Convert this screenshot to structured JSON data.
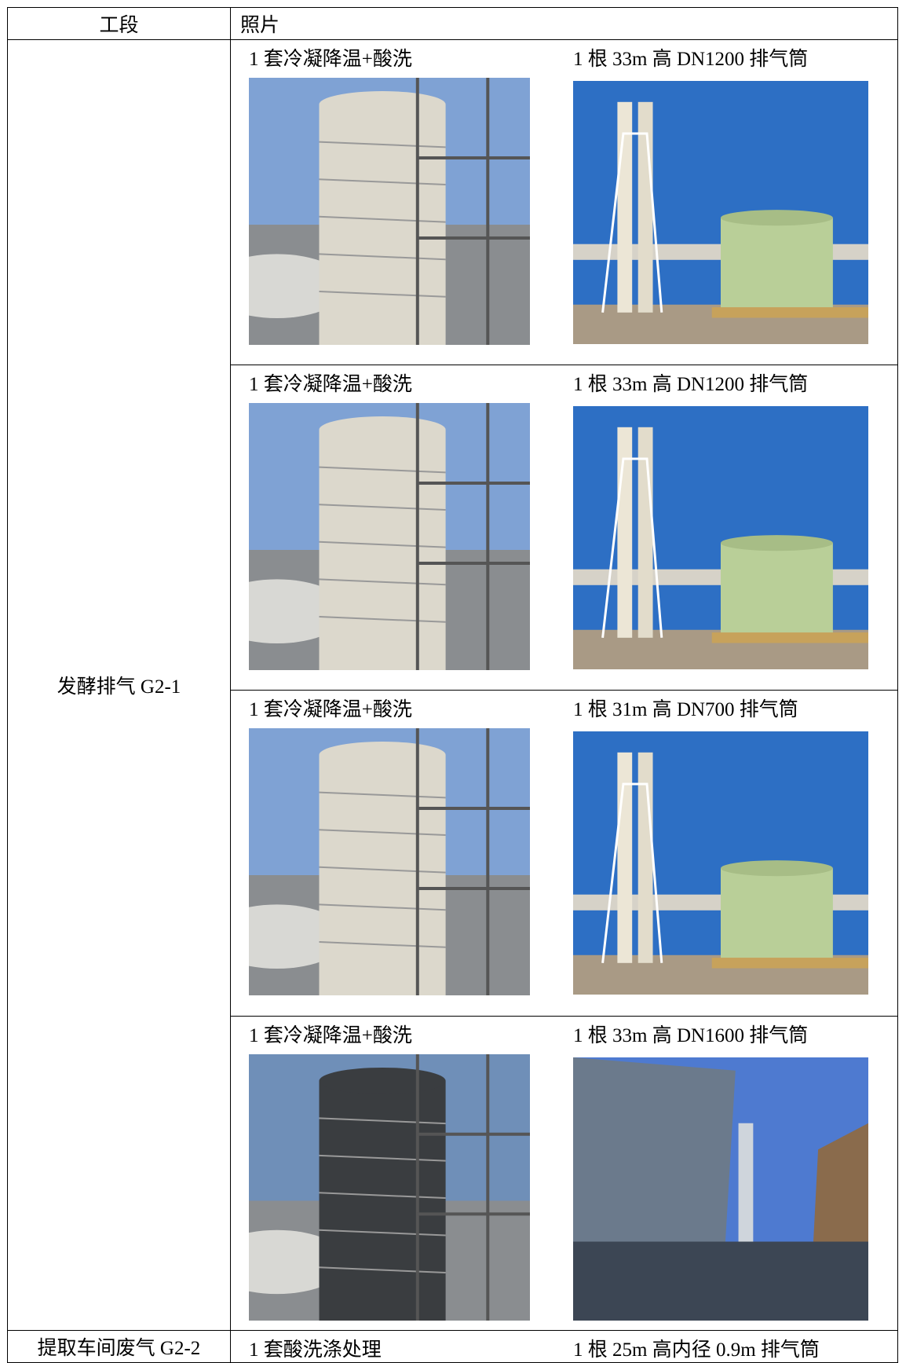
{
  "header": [
    "工段",
    "照片"
  ],
  "sections": [
    {
      "label": "发酵排气 G2-1",
      "rows": [
        {
          "left": "1 套冷凝降温+酸洗",
          "right": "1 根 33m 高 DN1200 排气筒"
        },
        {
          "left": "1 套冷凝降温+酸洗",
          "right": "1 根 33m 高 DN1200 排气筒"
        },
        {
          "left": "1 套冷凝降温+酸洗",
          "right": "1 根 31m 高 DN700 排气筒"
        },
        {
          "left": "1 套冷凝降温+酸洗",
          "right": "1 根 33m 高 DN1600 排气筒"
        }
      ]
    },
    {
      "label": "提取车间废气 G2-2",
      "rows": [
        {
          "left": "1 套酸洗涤处理",
          "right": "1 根 25m 高内径 0.9m 排气筒"
        }
      ]
    }
  ]
}
